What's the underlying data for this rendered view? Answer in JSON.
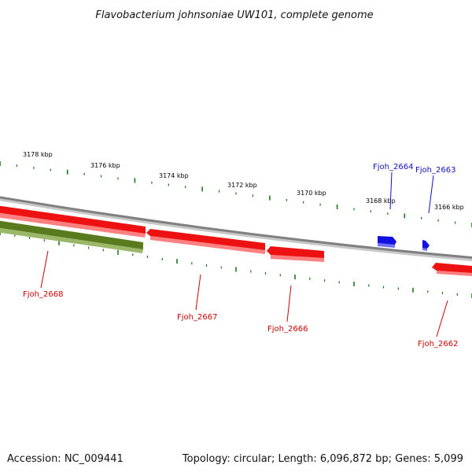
{
  "title": "Flavobacterium johnsoniae UW101, complete genome",
  "footer": {
    "accession": "Accession: NC_009441",
    "summary": "Topology: circular; Length: 6,096,872 bp; Genes: 5,099"
  },
  "colors": {
    "backbone": "#808080",
    "tick": "#1a7a1a",
    "forward_gene": "#1010e0",
    "reverse_gene": "#ee1111",
    "rna_gene": "#5a7a1e",
    "forward_label": "#1010c0",
    "reverse_label": "#cc0000"
  },
  "scale_labels": [
    {
      "kbp": 3178,
      "text": "3178 kbp"
    },
    {
      "kbp": 3176,
      "text": "3176 kbp"
    },
    {
      "kbp": 3174,
      "text": "3174 kbp"
    },
    {
      "kbp": 3172,
      "text": "3172 kbp"
    },
    {
      "kbp": 3170,
      "text": "3170 kbp"
    },
    {
      "kbp": 3168,
      "text": "3168 kbp"
    },
    {
      "kbp": 3166,
      "text": "3166 kbp"
    }
  ],
  "genes": [
    {
      "name": "Fjoh_2668",
      "strand": "minus",
      "type": "rna"
    },
    {
      "name": "Fjoh_2668",
      "strand": "minus",
      "type": "cds"
    },
    {
      "name": "Fjoh_2667",
      "strand": "minus",
      "type": "cds"
    },
    {
      "name": "Fjoh_2666",
      "strand": "minus",
      "type": "cds"
    },
    {
      "name": "Fjoh_2664",
      "strand": "plus",
      "type": "cds"
    },
    {
      "name": "Fjoh_2663",
      "strand": "plus",
      "type": "cds"
    },
    {
      "name": "Fjoh_2662",
      "strand": "minus",
      "type": "cds"
    }
  ]
}
